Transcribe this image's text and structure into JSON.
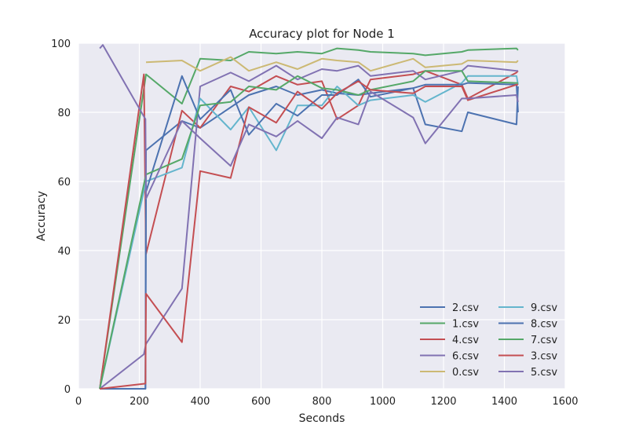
{
  "chart_data": {
    "type": "line",
    "title": "Accuracy plot for Node 1",
    "xlabel": "Seconds",
    "ylabel": "Accuracy",
    "xlim": [
      0,
      1600
    ],
    "ylim": [
      0,
      100
    ],
    "xticks": [
      0,
      200,
      400,
      600,
      800,
      1000,
      1200,
      1400,
      1600
    ],
    "yticks": [
      0,
      20,
      40,
      60,
      80,
      100
    ],
    "grid": true,
    "background": "#eaeaf2",
    "legend_position": "lower-right",
    "legend_columns": 2,
    "series": [
      {
        "name": "2.csv",
        "color": "#4c72b0",
        "x": [
          70,
          220,
          222,
          340,
          400,
          560,
          650,
          720,
          800,
          850,
          920,
          960,
          1100,
          1140,
          1260,
          1280,
          1440,
          1445
        ],
        "y": [
          0,
          0,
          69,
          77.5,
          75.5,
          85,
          87.5,
          85,
          86.5,
          85.5,
          85,
          85.5,
          87,
          76.5,
          74.5,
          80,
          76.5,
          87.5
        ]
      },
      {
        "name": "1.csv",
        "color": "#55a868",
        "x": [
          70,
          222,
          340,
          400,
          500,
          560,
          650,
          720,
          800,
          850,
          920,
          960,
          1100,
          1140,
          1260,
          1280,
          1440,
          1445
        ],
        "y": [
          0,
          91,
          82.5,
          95.5,
          95,
          97.5,
          97,
          97.5,
          97,
          98.5,
          98,
          97.5,
          97,
          96.5,
          97.5,
          98,
          98.5,
          98
        ]
      },
      {
        "name": "4.csv",
        "color": "#c44e52",
        "x": [
          70,
          215,
          222,
          340,
          400,
          500,
          560,
          650,
          720,
          800,
          850,
          920,
          960,
          1100,
          1140,
          1260,
          1280,
          1440,
          1445
        ],
        "y": [
          0,
          91,
          39,
          80.5,
          75.5,
          87.5,
          86,
          90.5,
          88,
          89,
          78,
          82,
          89.5,
          91,
          92,
          88,
          84,
          91.5,
          92
        ]
      },
      {
        "name": "6.csv",
        "color": "#8172b2",
        "x": [
          70,
          215,
          222,
          340,
          400,
          500,
          560,
          650,
          720,
          800,
          850,
          920,
          960,
          1100,
          1140,
          1260,
          1280,
          1440,
          1445
        ],
        "y": [
          0,
          10,
          13,
          29,
          87.5,
          91.5,
          89,
          93.5,
          89.5,
          92.5,
          92,
          93.5,
          90.5,
          92,
          89.5,
          92,
          93.5,
          92,
          92
        ]
      },
      {
        "name": "0.csv",
        "color": "#ccb974",
        "x": [
          222,
          340,
          400,
          500,
          560,
          650,
          720,
          800,
          850,
          920,
          960,
          1100,
          1140,
          1260,
          1280,
          1440,
          1445
        ],
        "y": [
          94.5,
          95,
          92,
          96,
          92,
          94.5,
          92.5,
          95.5,
          95,
          94.5,
          92,
          95.5,
          93,
          94,
          95,
          94.5,
          95
        ]
      },
      {
        "name": "9.csv",
        "color": "#64b5cd",
        "x": [
          70,
          222,
          340,
          400,
          500,
          560,
          650,
          720,
          800,
          850,
          920,
          960,
          1100,
          1140,
          1260,
          1280,
          1440,
          1445
        ],
        "y": [
          0,
          60,
          64,
          84,
          75,
          81.5,
          69,
          82,
          82,
          87.5,
          82,
          83.5,
          85,
          83,
          88.5,
          90.5,
          90.5,
          88
        ]
      },
      {
        "name": "8.csv",
        "color": "#4c72b0",
        "x": [
          70,
          220,
          222,
          340,
          400,
          500,
          560,
          650,
          720,
          800,
          850,
          920,
          960,
          1100,
          1140,
          1260,
          1280,
          1440,
          1445
        ],
        "y": [
          0,
          0,
          57,
          90.5,
          78,
          86.5,
          73.5,
          82.5,
          79,
          85,
          85,
          89.5,
          84.5,
          87,
          88,
          88,
          88.5,
          88,
          80
        ]
      },
      {
        "name": "7.csv",
        "color": "#55a868",
        "x": [
          70,
          222,
          340,
          400,
          500,
          560,
          650,
          720,
          800,
          850,
          920,
          960,
          1100,
          1140,
          1260,
          1280,
          1440,
          1445
        ],
        "y": [
          0,
          62,
          66.5,
          82,
          83,
          87.5,
          86.5,
          90.5,
          87,
          86.5,
          85,
          86.5,
          89,
          92,
          92,
          89,
          88.5,
          88.5
        ]
      },
      {
        "name": "3.csv",
        "color": "#c44e52",
        "x": [
          70,
          220,
          222,
          340,
          400,
          500,
          560,
          650,
          720,
          800,
          850,
          920,
          960,
          1100,
          1140,
          1260,
          1280,
          1440,
          1445
        ],
        "y": [
          0,
          1.5,
          27.5,
          13.5,
          63,
          61,
          81.5,
          77,
          86,
          81,
          85.5,
          89,
          86.5,
          85.5,
          87.5,
          87.5,
          83.5,
          88,
          88
        ]
      },
      {
        "name": "5.csv",
        "color": "#8172b2",
        "x": [
          70,
          80,
          220,
          222,
          340,
          400,
          500,
          560,
          650,
          720,
          800,
          850,
          920,
          960,
          1100,
          1140,
          1260,
          1280,
          1440,
          1445
        ],
        "y": [
          98.5,
          99.5,
          78,
          55,
          77.5,
          72.5,
          64.5,
          76.5,
          73,
          77.5,
          72.5,
          78.5,
          76.5,
          86,
          78.5,
          71,
          84,
          84,
          85,
          83
        ]
      }
    ]
  }
}
